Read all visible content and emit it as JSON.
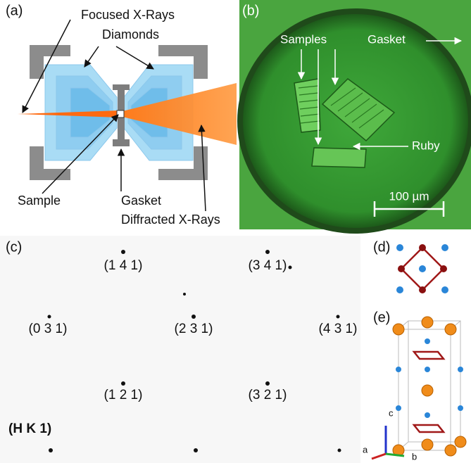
{
  "panel_a": {
    "label": "(a)",
    "annotations": [
      "Focused X-Rays",
      "Diamonds",
      "Sample",
      "Gasket",
      "Diffracted X-Rays"
    ]
  },
  "panel_b": {
    "label": "(b)",
    "annotations": [
      "Samples",
      "Gasket",
      "Ruby"
    ],
    "scale_bar": "100 µm"
  },
  "panel_c": {
    "label": "(c)",
    "reflections": [
      "(1 4 1)",
      "(3 4 1)",
      "(0 3 1)",
      "(2 3 1)",
      "(4 3 1)",
      "(1 2 1)",
      "(3 2 1)"
    ],
    "plane": "(H K 1)"
  },
  "panel_d": {
    "label": "(d)"
  },
  "panel_e": {
    "label": "(e)",
    "axes": [
      "c",
      "a",
      "b"
    ]
  }
}
